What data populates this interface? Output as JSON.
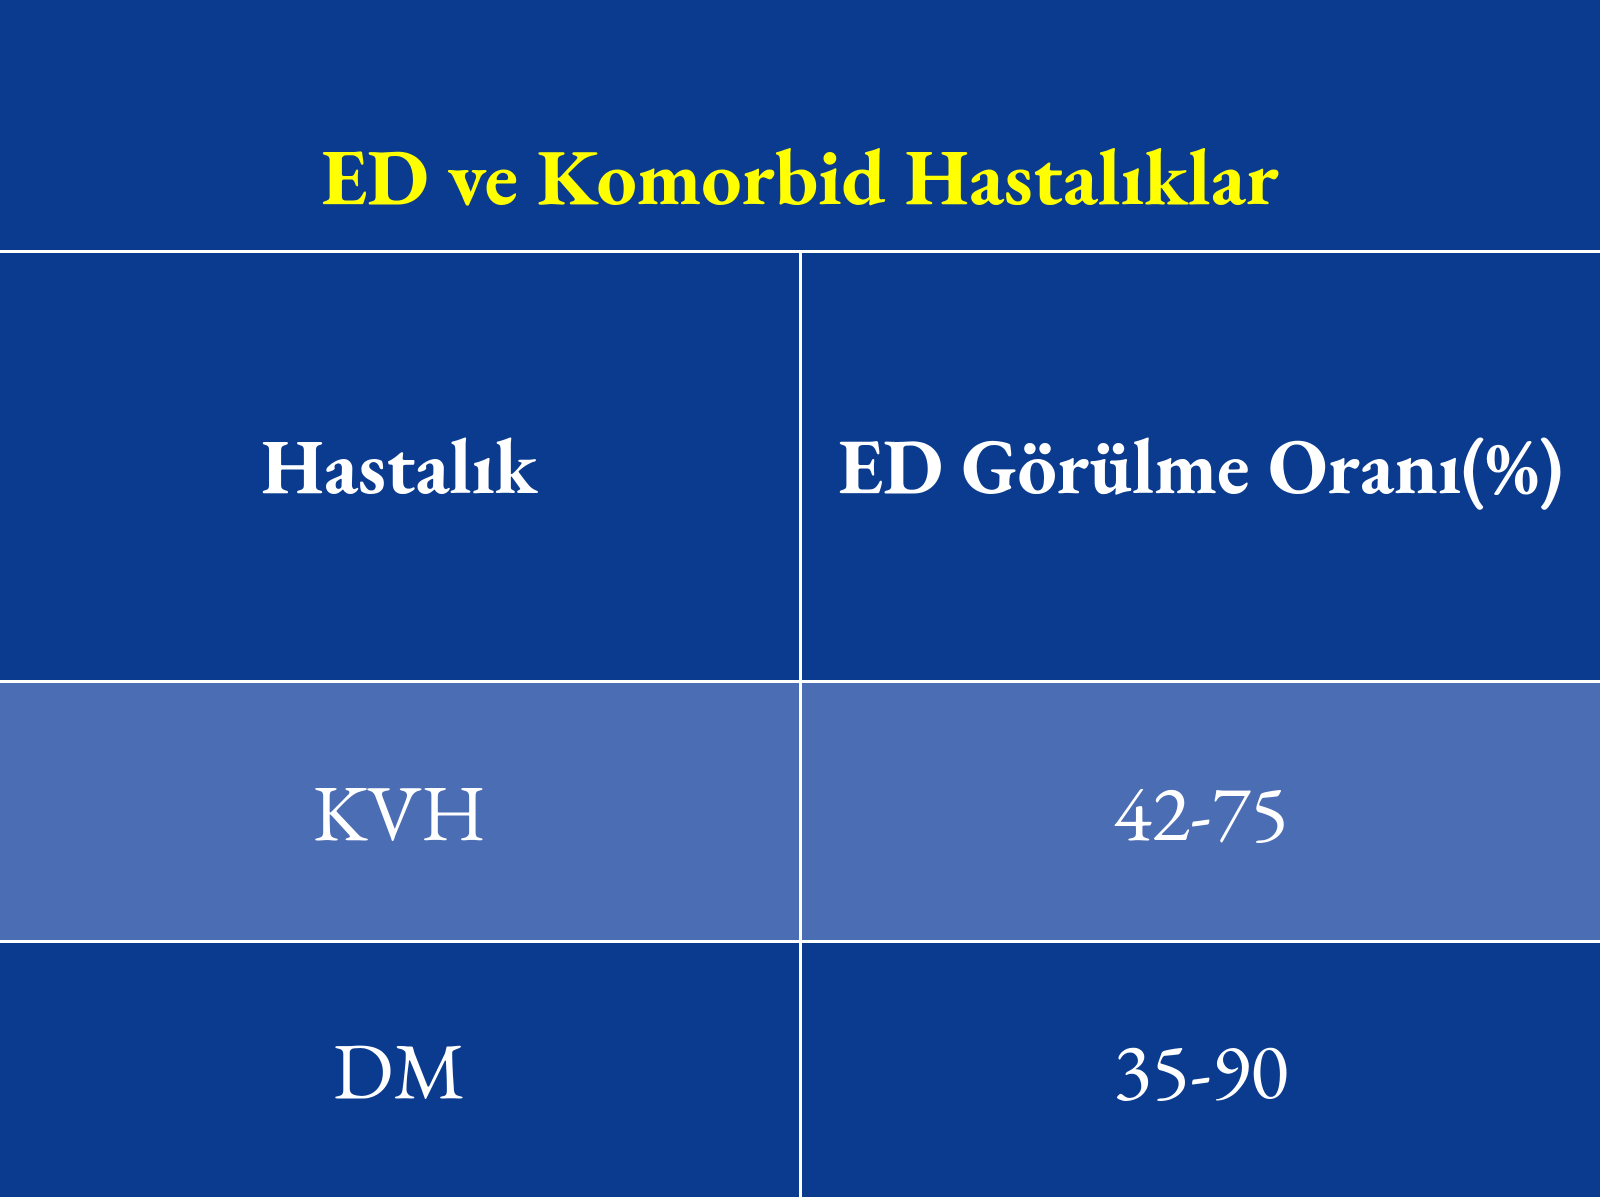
{
  "colors": {
    "background": "#0b3b8f",
    "title": "#ffff00",
    "text": "#ffffff",
    "border": "#ffffff",
    "row_alt_bg": "#4b6db3"
  },
  "title": {
    "text": "ED ve Komorbid Hastalıklar",
    "fontsize": 80
  },
  "table": {
    "type": "table",
    "header_fontsize": 78,
    "data_fontsize": 80,
    "columns": [
      {
        "label": "Hastalık"
      },
      {
        "label": "ED Görülme Oranı(%)"
      }
    ],
    "rows": [
      {
        "disease": "KVH",
        "rate": "42-75",
        "alt": true
      },
      {
        "disease": "DM",
        "rate": "35-90",
        "alt": false
      }
    ]
  }
}
